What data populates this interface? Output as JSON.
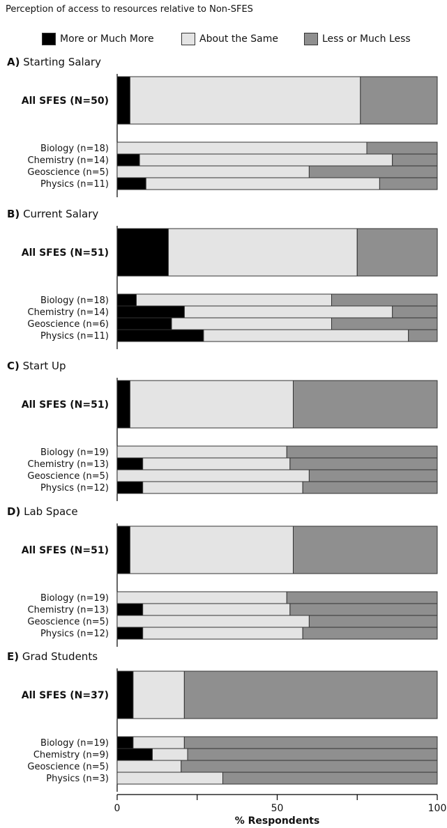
{
  "title": "Perception of access to resources relative to Non-SFES",
  "colors": {
    "more": "#000000",
    "same": "#e4e4e4",
    "less": "#8f8f8f",
    "outline": "#333333"
  },
  "legend": [
    {
      "key": "more",
      "label": "More or Much More"
    },
    {
      "key": "same",
      "label": "About the Same"
    },
    {
      "key": "less",
      "label": "Less or Much Less"
    }
  ],
  "chart_data": {
    "type": "bar",
    "orientation": "horizontal",
    "stacked": true,
    "title": "Perception of access to resources relative to Non-SFES",
    "xlabel": "% Respondents",
    "xlim": [
      0,
      100
    ],
    "xticks": [
      "0",
      "50",
      "100"
    ],
    "series": [
      {
        "name": "More or Much More",
        "key": "more"
      },
      {
        "name": "About the Same",
        "key": "same"
      },
      {
        "name": "Less or Much Less",
        "key": "less"
      }
    ],
    "panels": [
      {
        "letter": "A)",
        "name": "Starting Salary",
        "all": {
          "label": "All SFES (N=50)",
          "values": [
            4,
            72,
            24
          ]
        },
        "groups": [
          {
            "label": "Biology (n=18)",
            "values": [
              0,
              78,
              22
            ]
          },
          {
            "label": "Chemistry (n=14)",
            "values": [
              7,
              79,
              14
            ]
          },
          {
            "label": "Geoscience (n=5)",
            "values": [
              0,
              60,
              40
            ]
          },
          {
            "label": "Physics (n=11)",
            "values": [
              9,
              73,
              18
            ]
          }
        ]
      },
      {
        "letter": "B)",
        "name": "Current Salary",
        "all": {
          "label": "All SFES (N=51)",
          "values": [
            16,
            59,
            25
          ]
        },
        "groups": [
          {
            "label": "Biology (n=18)",
            "values": [
              6,
              61,
              33
            ]
          },
          {
            "label": "Chemistry (n=14)",
            "values": [
              21,
              65,
              14
            ]
          },
          {
            "label": "Geoscience (n=6)",
            "values": [
              17,
              50,
              33
            ]
          },
          {
            "label": "Physics (n=11)",
            "values": [
              27,
              64,
              9
            ]
          }
        ]
      },
      {
        "letter": "C)",
        "name": "Start Up",
        "all": {
          "label": "All SFES (N=51)",
          "values": [
            4,
            51,
            45
          ]
        },
        "groups": [
          {
            "label": "Biology (n=19)",
            "values": [
              0,
              53,
              47
            ]
          },
          {
            "label": "Chemistry (n=13)",
            "values": [
              8,
              46,
              46
            ]
          },
          {
            "label": "Geoscience (n=5)",
            "values": [
              0,
              60,
              40
            ]
          },
          {
            "label": "Physics (n=12)",
            "values": [
              8,
              50,
              42
            ]
          }
        ]
      },
      {
        "letter": "D)",
        "name": "Lab Space",
        "all": {
          "label": "All SFES (N=51)",
          "values": [
            4,
            51,
            45
          ]
        },
        "groups": [
          {
            "label": "Biology (n=19)",
            "values": [
              0,
              53,
              47
            ]
          },
          {
            "label": "Chemistry (n=13)",
            "values": [
              8,
              46,
              46
            ]
          },
          {
            "label": "Geoscience (n=5)",
            "values": [
              0,
              60,
              40
            ]
          },
          {
            "label": "Physics (n=12)",
            "values": [
              8,
              50,
              42
            ]
          }
        ]
      },
      {
        "letter": "E)",
        "name": "Grad Students",
        "all": {
          "label": "All SFES (N=37)",
          "values": [
            5,
            16,
            79
          ]
        },
        "groups": [
          {
            "label": "Biology (n=19)",
            "values": [
              5,
              16,
              79
            ]
          },
          {
            "label": "Chemistry (n=9)",
            "values": [
              11,
              11,
              78
            ]
          },
          {
            "label": "Geoscience (n=5)",
            "values": [
              0,
              20,
              80
            ]
          },
          {
            "label": "Physics (n=3)",
            "values": [
              0,
              33,
              67
            ]
          }
        ]
      }
    ]
  }
}
